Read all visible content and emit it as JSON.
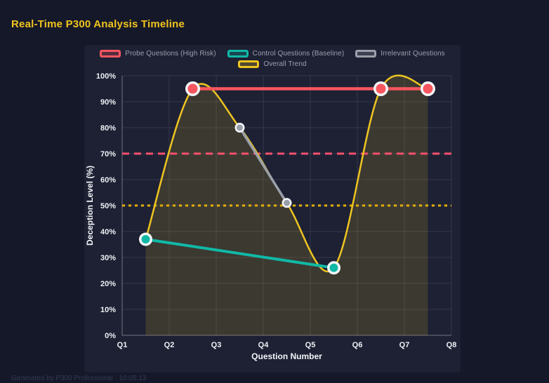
{
  "header": {
    "title": "Real-Time P300 Analysis Timeline"
  },
  "footer": {
    "text": "Generated by P300 Professional · 10:05:13"
  },
  "colors": {
    "page_background": "#151829",
    "panel_background": "#1e2134",
    "title_accent": "#f0c41f",
    "probe_red": "#f8565f",
    "control_teal": "#10b9a6",
    "irrelevant_gray": "#9aa0aa",
    "trend_gold": "#eec420",
    "threshold_red": "#f7506d",
    "threshold_gold": "#e3ae06",
    "tick_text": "#edf0f4",
    "legend_text": "#98a0ac"
  },
  "chart_data": {
    "type": "line",
    "title": "Real-Time P300 Analysis Timeline",
    "xlabel": "Question Number",
    "ylabel": "Deception Level (%)",
    "x_ticks": [
      "Q1",
      "Q2",
      "Q3",
      "Q4",
      "Q5",
      "Q6",
      "Q7",
      "Q8"
    ],
    "y_ticks": [
      "0%",
      "10%",
      "20%",
      "30%",
      "40%",
      "50%",
      "60%",
      "70%",
      "80%",
      "90%",
      "100%"
    ],
    "xlim": [
      1,
      8
    ],
    "ylim": [
      0,
      100
    ],
    "grid": true,
    "legend_position": "top",
    "series": [
      {
        "name": "Probe Questions (High Risk)",
        "color": "#f8565f",
        "x": [
          2.5,
          6.5,
          7.5
        ],
        "y": [
          95,
          95,
          95
        ],
        "shape": "line",
        "line_width": 4.5,
        "point_outer": 10.5,
        "point_inner": 7
      },
      {
        "name": "Control Questions (Baseline)",
        "color": "#10b9a6",
        "x": [
          1.5,
          5.5
        ],
        "y": [
          37,
          26
        ],
        "shape": "line",
        "line_width": 4,
        "point_outer": 9.5,
        "point_inner": 6
      },
      {
        "name": "Irrelevant Questions",
        "color": "#9aa0aa",
        "x": [
          3.5,
          4.5
        ],
        "y": [
          80,
          51
        ],
        "shape": "line",
        "line_width": 3.5,
        "point_outer": 7,
        "point_inner": 4.5
      },
      {
        "name": "Overall Trend",
        "color": "#eec420",
        "x": [
          1.5,
          2.5,
          3.5,
          4.5,
          5.5,
          6.5,
          7.5
        ],
        "y": [
          37,
          95,
          80,
          51,
          26,
          95,
          95
        ],
        "shape": "spline",
        "line_width": 2.5,
        "point_outer": 0,
        "point_inner": 0,
        "fill": "rgba(236,197,32,0.15)"
      }
    ],
    "thresholds": [
      {
        "value": 70,
        "color": "#f7506d",
        "dash": "dashed"
      },
      {
        "value": 50,
        "color": "#e3ae06",
        "dash": "dotted"
      }
    ]
  }
}
